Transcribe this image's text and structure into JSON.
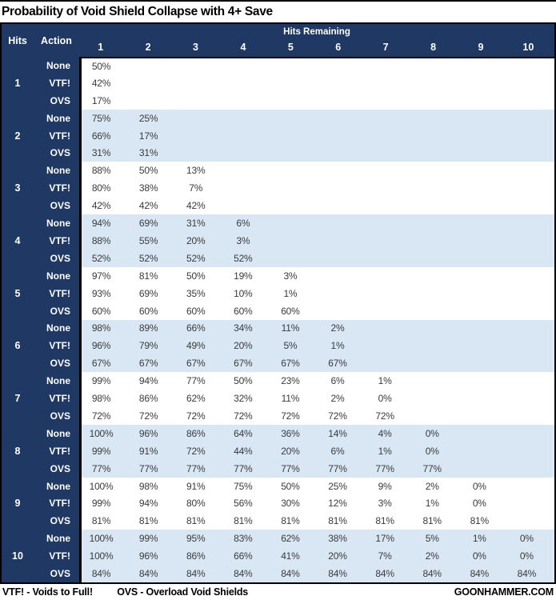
{
  "chart_data": {
    "type": "table",
    "title": "Probability of Void Shield Collapse with 4+ Save",
    "corner_hits": "Hits",
    "corner_action": "Action",
    "column_group_label": "Hits Remaining",
    "columns": [
      "1",
      "2",
      "3",
      "4",
      "5",
      "6",
      "7",
      "8",
      "9",
      "10"
    ],
    "groups": [
      {
        "hits": "1",
        "rows": [
          {
            "action": "None",
            "values": [
              "50%"
            ]
          },
          {
            "action": "VTF!",
            "values": [
              "42%"
            ]
          },
          {
            "action": "OVS",
            "values": [
              "17%"
            ]
          }
        ]
      },
      {
        "hits": "2",
        "rows": [
          {
            "action": "None",
            "values": [
              "75%",
              "25%"
            ]
          },
          {
            "action": "VTF!",
            "values": [
              "66%",
              "17%"
            ]
          },
          {
            "action": "OVS",
            "values": [
              "31%",
              "31%"
            ]
          }
        ]
      },
      {
        "hits": "3",
        "rows": [
          {
            "action": "None",
            "values": [
              "88%",
              "50%",
              "13%"
            ]
          },
          {
            "action": "VTF!",
            "values": [
              "80%",
              "38%",
              "7%"
            ]
          },
          {
            "action": "OVS",
            "values": [
              "42%",
              "42%",
              "42%"
            ]
          }
        ]
      },
      {
        "hits": "4",
        "rows": [
          {
            "action": "None",
            "values": [
              "94%",
              "69%",
              "31%",
              "6%"
            ]
          },
          {
            "action": "VTF!",
            "values": [
              "88%",
              "55%",
              "20%",
              "3%"
            ]
          },
          {
            "action": "OVS",
            "values": [
              "52%",
              "52%",
              "52%",
              "52%"
            ]
          }
        ]
      },
      {
        "hits": "5",
        "rows": [
          {
            "action": "None",
            "values": [
              "97%",
              "81%",
              "50%",
              "19%",
              "3%"
            ]
          },
          {
            "action": "VTF!",
            "values": [
              "93%",
              "69%",
              "35%",
              "10%",
              "1%"
            ]
          },
          {
            "action": "OVS",
            "values": [
              "60%",
              "60%",
              "60%",
              "60%",
              "60%"
            ]
          }
        ]
      },
      {
        "hits": "6",
        "rows": [
          {
            "action": "None",
            "values": [
              "98%",
              "89%",
              "66%",
              "34%",
              "11%",
              "2%"
            ]
          },
          {
            "action": "VTF!",
            "values": [
              "96%",
              "79%",
              "49%",
              "20%",
              "5%",
              "1%"
            ]
          },
          {
            "action": "OVS",
            "values": [
              "67%",
              "67%",
              "67%",
              "67%",
              "67%",
              "67%"
            ]
          }
        ]
      },
      {
        "hits": "7",
        "rows": [
          {
            "action": "None",
            "values": [
              "99%",
              "94%",
              "77%",
              "50%",
              "23%",
              "6%",
              "1%"
            ]
          },
          {
            "action": "VTF!",
            "values": [
              "98%",
              "86%",
              "62%",
              "32%",
              "11%",
              "2%",
              "0%"
            ]
          },
          {
            "action": "OVS",
            "values": [
              "72%",
              "72%",
              "72%",
              "72%",
              "72%",
              "72%",
              "72%"
            ]
          }
        ]
      },
      {
        "hits": "8",
        "rows": [
          {
            "action": "None",
            "values": [
              "100%",
              "96%",
              "86%",
              "64%",
              "36%",
              "14%",
              "4%",
              "0%"
            ]
          },
          {
            "action": "VTF!",
            "values": [
              "99%",
              "91%",
              "72%",
              "44%",
              "20%",
              "6%",
              "1%",
              "0%"
            ]
          },
          {
            "action": "OVS",
            "values": [
              "77%",
              "77%",
              "77%",
              "77%",
              "77%",
              "77%",
              "77%",
              "77%"
            ]
          }
        ]
      },
      {
        "hits": "9",
        "rows": [
          {
            "action": "None",
            "values": [
              "100%",
              "98%",
              "91%",
              "75%",
              "50%",
              "25%",
              "9%",
              "2%",
              "0%"
            ]
          },
          {
            "action": "VTF!",
            "values": [
              "99%",
              "94%",
              "80%",
              "56%",
              "30%",
              "12%",
              "3%",
              "1%",
              "0%"
            ]
          },
          {
            "action": "OVS",
            "values": [
              "81%",
              "81%",
              "81%",
              "81%",
              "81%",
              "81%",
              "81%",
              "81%",
              "81%"
            ]
          }
        ]
      },
      {
        "hits": "10",
        "rows": [
          {
            "action": "None",
            "values": [
              "100%",
              "99%",
              "95%",
              "83%",
              "62%",
              "38%",
              "17%",
              "5%",
              "1%",
              "0%"
            ]
          },
          {
            "action": "VTF!",
            "values": [
              "100%",
              "96%",
              "86%",
              "66%",
              "41%",
              "20%",
              "7%",
              "2%",
              "0%",
              "0%"
            ]
          },
          {
            "action": "OVS",
            "values": [
              "84%",
              "84%",
              "84%",
              "84%",
              "84%",
              "84%",
              "84%",
              "84%",
              "84%",
              "84%"
            ]
          }
        ]
      }
    ]
  },
  "footer": {
    "legend_vtf": "VTF! - Voids to Full!",
    "legend_ovs": "OVS - Overload Void Shields",
    "site": "GOONHAMMER.COM"
  },
  "colors": {
    "header_bg": "#1F3864",
    "header_text": "#FFFFFF",
    "band_blue": "#D9E7F5",
    "band_white": "#FFFFFF",
    "value_text": "#3A3A3A",
    "border": "#000000"
  }
}
